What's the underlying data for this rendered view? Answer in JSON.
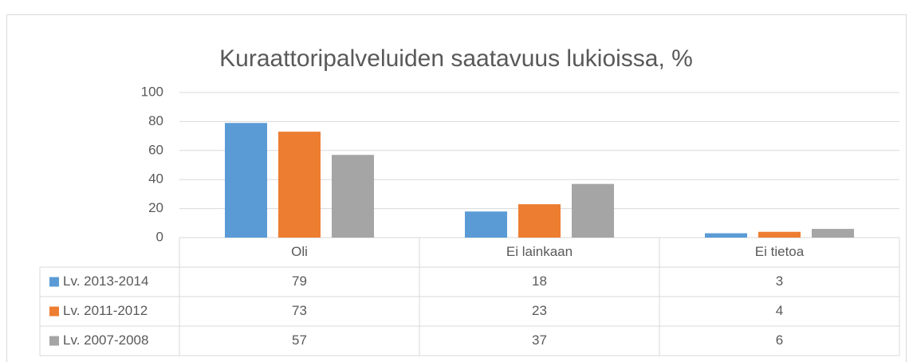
{
  "chart_data": {
    "type": "bar",
    "title": "Kuraattoripalveluiden saatavuus lukioissa, %",
    "categories": [
      "Oli",
      "Ei lainkaan",
      "Ei tietoa"
    ],
    "series": [
      {
        "name": "Lv. 2013-2014",
        "color": "#5b9bd5",
        "values": [
          79,
          18,
          3
        ]
      },
      {
        "name": "Lv. 2011-2012",
        "color": "#ed7d31",
        "values": [
          73,
          23,
          4
        ]
      },
      {
        "name": "Lv. 2007-2008",
        "color": "#a5a5a5",
        "values": [
          57,
          37,
          6
        ]
      }
    ],
    "ylim": [
      0,
      100
    ],
    "yticks": [
      0,
      20,
      40,
      60,
      80,
      100
    ],
    "grid": true
  }
}
